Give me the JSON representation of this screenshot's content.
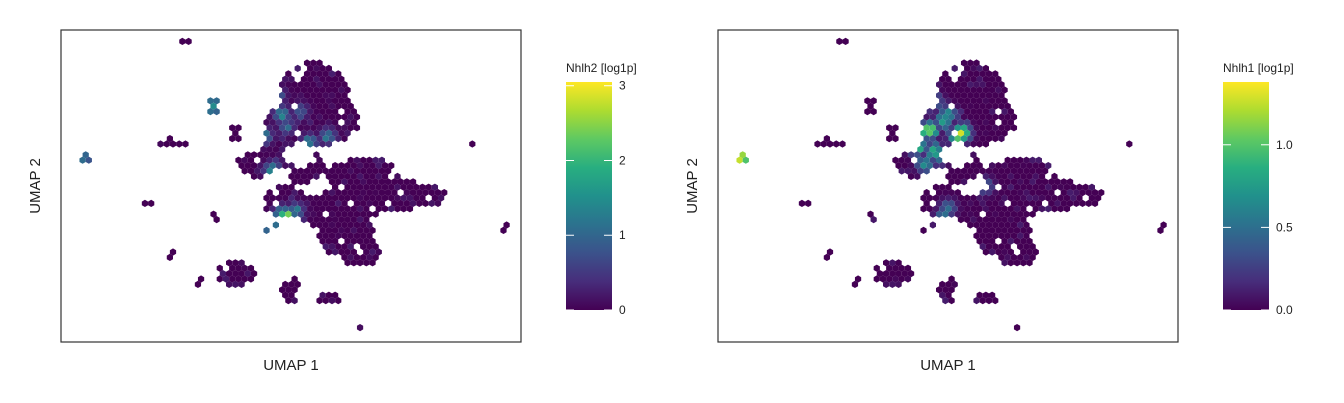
{
  "chart_data": [
    {
      "type": "hexbin-embedding",
      "feature": "Nhlh2",
      "legend_title": "Nhlh2 [log1p]",
      "xlabel": "UMAP 1",
      "ylabel": "UMAP 2",
      "color_scale": "viridis",
      "color_range": [
        0,
        3.05
      ],
      "legend_ticks": [
        0,
        1,
        2,
        3
      ],
      "legend_tick_labels": [
        "0",
        "1",
        "2",
        "3"
      ],
      "hotspots": [
        {
          "u": 0.46,
          "v": 0.55,
          "value": 1.5
        },
        {
          "u": 0.5,
          "v": 0.6,
          "value": 1.0
        },
        {
          "u": 0.54,
          "v": 0.64,
          "value": 1.2
        },
        {
          "u": 0.44,
          "v": 0.66,
          "value": 1.4
        },
        {
          "u": 0.58,
          "v": 0.66,
          "value": 1.1
        },
        {
          "u": 0.49,
          "v": 0.69,
          "value": 0.9
        },
        {
          "u": 0.48,
          "v": 0.73,
          "value": 1.3
        },
        {
          "u": 0.52,
          "v": 0.74,
          "value": 0.8
        },
        {
          "u": 0.47,
          "v": 0.79,
          "value": 1.0
        },
        {
          "u": 0.33,
          "v": 0.76,
          "value": 1.5
        },
        {
          "u": 0.33,
          "v": 0.74,
          "value": 1.2
        },
        {
          "u": 0.05,
          "v": 0.59,
          "value": 1.2
        },
        {
          "u": 0.49,
          "v": 0.4,
          "value": 2.9
        },
        {
          "u": 0.49,
          "v": 0.39,
          "value": 2.2
        },
        {
          "u": 0.48,
          "v": 0.41,
          "value": 1.6
        },
        {
          "u": 0.46,
          "v": 0.36,
          "value": 1.6
        },
        {
          "u": 0.44,
          "v": 0.37,
          "value": 1.4
        },
        {
          "u": 0.51,
          "v": 0.42,
          "value": 1.2
        }
      ]
    },
    {
      "type": "hexbin-embedding",
      "feature": "Nhlh1",
      "legend_title": "Nhlh1 [log1p]",
      "xlabel": "UMAP 1",
      "ylabel": "UMAP 2",
      "color_scale": "viridis",
      "color_range": [
        0,
        1.38
      ],
      "legend_ticks": [
        0,
        0.5,
        1
      ],
      "legend_tick_labels": [
        "0.0",
        "0.5",
        "1.0"
      ],
      "hotspots": [
        {
          "u": 0.43,
          "v": 0.63,
          "value": 1.3
        },
        {
          "u": 0.44,
          "v": 0.67,
          "value": 1.0
        },
        {
          "u": 0.46,
          "v": 0.68,
          "value": 1.2
        },
        {
          "u": 0.47,
          "v": 0.61,
          "value": 0.9
        },
        {
          "u": 0.53,
          "v": 0.67,
          "value": 1.3
        },
        {
          "u": 0.52,
          "v": 0.66,
          "value": 1.1
        },
        {
          "u": 0.5,
          "v": 0.73,
          "value": 0.7
        },
        {
          "u": 0.49,
          "v": 0.71,
          "value": 0.8
        },
        {
          "u": 0.47,
          "v": 0.77,
          "value": 0.6
        },
        {
          "u": 0.45,
          "v": 0.57,
          "value": 0.7
        },
        {
          "u": 0.48,
          "v": 0.59,
          "value": 0.5
        },
        {
          "u": 0.05,
          "v": 0.59,
          "value": 1.4
        },
        {
          "u": 0.06,
          "v": 0.58,
          "value": 1.0
        },
        {
          "u": 0.49,
          "v": 0.4,
          "value": 0.6
        },
        {
          "u": 0.5,
          "v": 0.43,
          "value": 0.5
        },
        {
          "u": 0.58,
          "v": 0.5,
          "value": 0.5
        }
      ]
    }
  ]
}
